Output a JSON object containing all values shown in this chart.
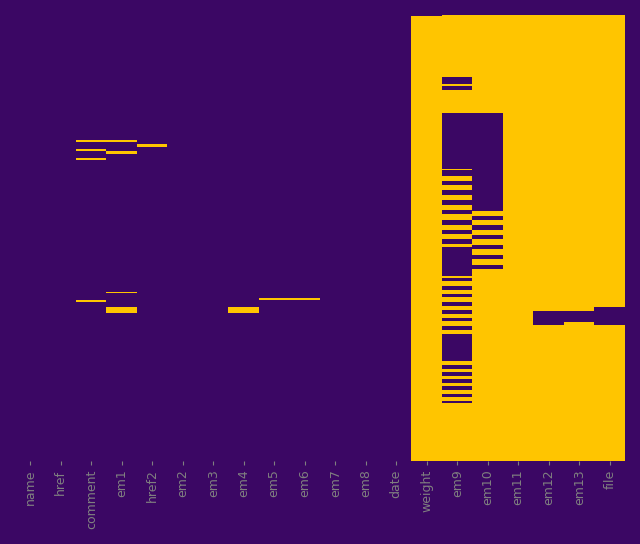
{
  "columns": [
    "name",
    "href",
    "comment",
    "em1",
    "href2",
    "em2",
    "em3",
    "em4",
    "em5",
    "em6",
    "em7",
    "em8",
    "date",
    "weight",
    "em9",
    "em10",
    "em11",
    "em12",
    "em13",
    "file"
  ],
  "n_rows": 700,
  "present_color": "#ffc500",
  "missing_color": "#3b0764",
  "figsize": [
    6.4,
    5.44
  ],
  "dpi": 100
}
